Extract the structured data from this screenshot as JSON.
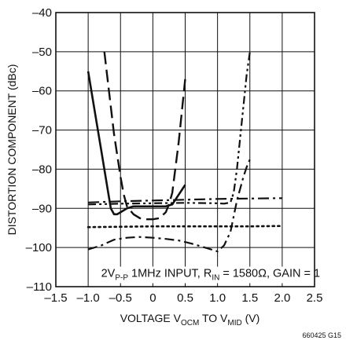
{
  "chart_data": {
    "type": "line",
    "xlabel": {
      "pre": "VOLTAGE V",
      "sub1": "OCM",
      "mid": " TO V",
      "sub2": "MID",
      "post": " (V)"
    },
    "ylabel": "DISTORTION COMPONENT (dBc)",
    "xlim": [
      -1.5,
      2.5
    ],
    "ylim": [
      -110,
      -40
    ],
    "x_ticks": [
      -1.5,
      -1.0,
      -0.5,
      0,
      0.5,
      1.0,
      1.5,
      2.0,
      2.5
    ],
    "x_tick_labels": [
      "–1.5",
      "–1.0",
      "–0.5",
      "0",
      "0.5",
      "1.0",
      "1.5",
      "2.0",
      "2.5"
    ],
    "y_ticks": [
      -110,
      -100,
      -90,
      -80,
      -70,
      -60,
      -50,
      -40
    ],
    "y_tick_labels": [
      "–110",
      "–100",
      "–90",
      "–80",
      "–70",
      "–60",
      "–50",
      "–40"
    ],
    "grid": true,
    "plot_x_range": [
      -1.0,
      2.0
    ],
    "annotation": {
      "p1": "2V",
      "s1": "P-P",
      "p2": " 1MHz INPUT, R",
      "s2": "IN",
      "p3": " = 1580Ω, GAIN = 1"
    },
    "figure_id": "660425 G15",
    "series": [
      {
        "style": "solid",
        "x": [
          -1.0,
          -0.9,
          -0.8,
          -0.7,
          -0.65,
          -0.6,
          -0.55,
          -0.5,
          -0.4,
          -0.3,
          -0.2,
          -0.1,
          0,
          0.1,
          0.2,
          0.3,
          0.4,
          0.5
        ],
        "y": [
          -55,
          -65,
          -75,
          -85,
          -90,
          -91.5,
          -91.5,
          -91,
          -90,
          -89.5,
          -89.5,
          -89.5,
          -89.5,
          -89.5,
          -89.5,
          -89,
          -86.5,
          -84
        ]
      },
      {
        "style": "long-dash",
        "x": [
          -0.75,
          -0.7,
          -0.6,
          -0.5,
          -0.45,
          -0.4,
          -0.3,
          -0.2,
          -0.1,
          0,
          0.1,
          0.2,
          0.25,
          0.3,
          0.4,
          0.5
        ],
        "y": [
          -50,
          -57,
          -71,
          -82,
          -86.5,
          -89.5,
          -91.5,
          -92.5,
          -92.8,
          -92.8,
          -92.5,
          -91,
          -89,
          -86,
          -73,
          -57
        ]
      },
      {
        "style": "dash-dot",
        "x": [
          -1.0,
          -0.8,
          -0.6,
          -0.4,
          -0.2,
          0,
          0.2,
          0.4,
          0.6,
          0.8,
          0.9,
          1.0,
          1.1,
          1.2,
          1.25,
          1.3,
          1.35,
          1.4,
          1.45,
          1.5
        ],
        "y": [
          -100.5,
          -99.5,
          -98,
          -97.5,
          -97.3,
          -97.5,
          -97.8,
          -98.2,
          -99,
          -100,
          -100.5,
          -101,
          -99.5,
          -96,
          -92,
          -88,
          -85,
          -82,
          -79.5,
          -77.5
        ]
      },
      {
        "style": "dash-dot-dot",
        "x": [
          -1.0,
          -0.5,
          0,
          0.5,
          1.0,
          1.1,
          1.2,
          1.25,
          1.3,
          1.35,
          1.4,
          1.45,
          1.5
        ],
        "y": [
          -89,
          -88.8,
          -88.7,
          -88.6,
          -88.7,
          -88.8,
          -88.5,
          -86,
          -80,
          -72,
          -64,
          -56,
          -50
        ]
      },
      {
        "style": "dotted",
        "x": [
          -1.0,
          -0.5,
          0,
          0.5,
          1.0,
          1.5,
          2.0
        ],
        "y": [
          -94.8,
          -94.7,
          -94.6,
          -94.6,
          -94.6,
          -94.6,
          -94.5
        ]
      },
      {
        "style": "dash-dot-long",
        "x": [
          -1.0,
          -0.5,
          0,
          0.5,
          1.0,
          1.5,
          2.0
        ],
        "y": [
          -88.5,
          -88.2,
          -88,
          -87.8,
          -87.6,
          -87.5,
          -87.4
        ]
      }
    ]
  }
}
